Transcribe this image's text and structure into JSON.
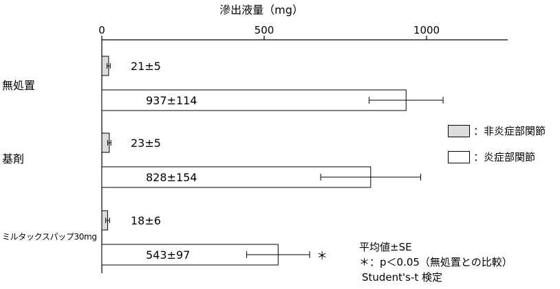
{
  "chart_data": {
    "type": "bar",
    "orientation": "horizontal",
    "title": "",
    "xlabel": "滲出液量（mg）",
    "xlim": [
      0,
      1250
    ],
    "xticks": [
      "0",
      "500",
      "1000"
    ],
    "categories": [
      "無処置",
      "基剤",
      "ミルタックスパップ30mg"
    ],
    "series": [
      {
        "name": "：非炎症部関節",
        "color": "#dcdcdc",
        "values": [
          21,
          23,
          18
        ],
        "errors": [
          5,
          5,
          6
        ],
        "labels": [
          "21±5",
          "23±5",
          "18±6"
        ]
      },
      {
        "name": "：炎症部関節",
        "color": "#ffffff",
        "values": [
          937,
          828,
          543
        ],
        "errors": [
          114,
          154,
          97
        ],
        "labels": [
          "937±114",
          "828±154",
          "543±97"
        ]
      }
    ],
    "significance_marker": "＊",
    "legend_position": "right",
    "grid": false
  },
  "notes": {
    "line1": "平均値±SE",
    "line2": "＊：p＜0.05（無処置との比較）",
    "line3": "Student's-t 検定"
  }
}
